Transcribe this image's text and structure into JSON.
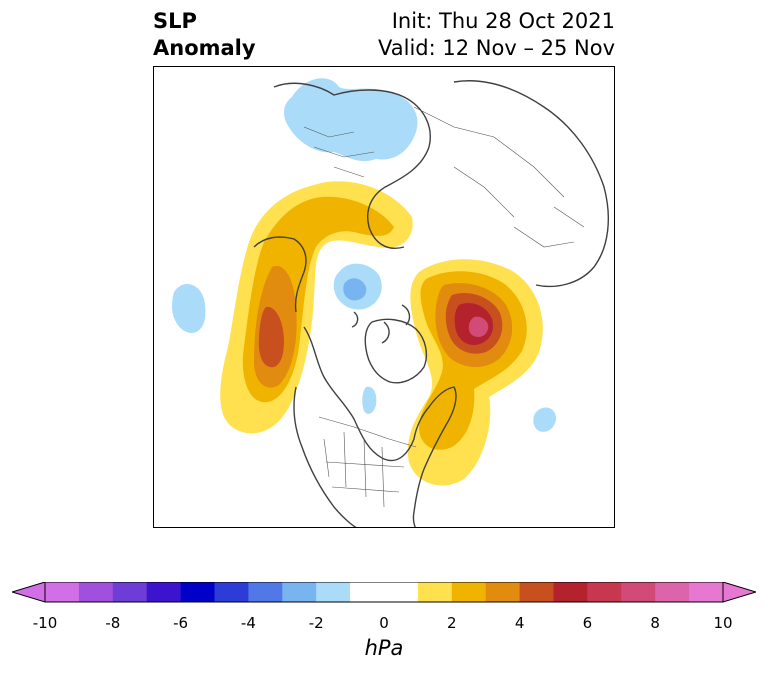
{
  "title": {
    "left_line1": "SLP",
    "left_line2": "Anomaly",
    "right_line1": "Init: Thu 28 Oct 2021",
    "right_line2": "Valid: 12 Nov – 25 Nov"
  },
  "colorbar": {
    "unit": "hPa",
    "ticks": [
      "-10",
      "-8",
      "-6",
      "-4",
      "-2",
      "0",
      "2",
      "4",
      "6",
      "8",
      "10"
    ],
    "bins": [
      {
        "from": -10,
        "to": -9,
        "color": "#d26ee6"
      },
      {
        "from": -9,
        "to": -8,
        "color": "#a050dc"
      },
      {
        "from": -8,
        "to": -7,
        "color": "#6e3cd7"
      },
      {
        "from": -7,
        "to": -6,
        "color": "#3c14cd"
      },
      {
        "from": -6,
        "to": -5,
        "color": "#0000c8"
      },
      {
        "from": -5,
        "to": -4,
        "color": "#2d3cd7"
      },
      {
        "from": -4,
        "to": -3,
        "color": "#5078e6"
      },
      {
        "from": -3,
        "to": -2,
        "color": "#78b4f0"
      },
      {
        "from": -2,
        "to": -1,
        "color": "#aadcfa"
      },
      {
        "from": -1,
        "to": 0,
        "color": "#ffffff"
      },
      {
        "from": 0,
        "to": 1,
        "color": "#ffffff"
      },
      {
        "from": 1,
        "to": 2,
        "color": "#ffe150"
      },
      {
        "from": 2,
        "to": 3,
        "color": "#f0b400"
      },
      {
        "from": 3,
        "to": 4,
        "color": "#e18c0f"
      },
      {
        "from": 4,
        "to": 5,
        "color": "#c8501e"
      },
      {
        "from": 5,
        "to": 6,
        "color": "#b4232d"
      },
      {
        "from": 6,
        "to": 7,
        "color": "#c83750"
      },
      {
        "from": 7,
        "to": 8,
        "color": "#d24b78"
      },
      {
        "from": 8,
        "to": 9,
        "color": "#dc64aa"
      },
      {
        "from": 9,
        "to": 10,
        "color": "#e678d2"
      }
    ],
    "extend_low_color": "#d26ee6",
    "extend_high_color": "#e678d2"
  },
  "map": {
    "projection": "north-polar-stereographic",
    "field": "sea-level-pressure-anomaly"
  }
}
